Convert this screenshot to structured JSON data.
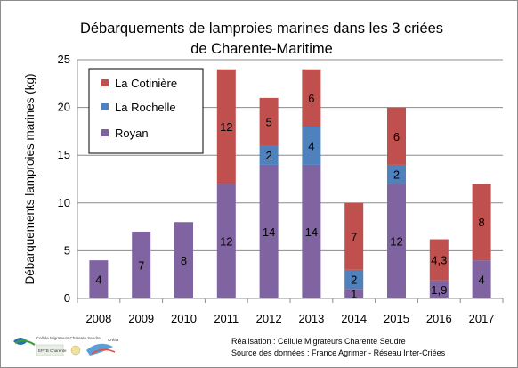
{
  "chart_data": {
    "type": "bar",
    "stacked": true,
    "title_line1": "Débarquements de lamproies marines dans les 3 criées",
    "title_line2": "de Charente-Maritime",
    "ylabel": "Débarquements lamproies marines  (kg)",
    "xlabel": "",
    "ylim": [
      0,
      25
    ],
    "yticks": [
      "0",
      "5",
      "10",
      "15",
      "20",
      "25"
    ],
    "grid": true,
    "legend_position": "top-left",
    "categories": [
      "2008",
      "2009",
      "2010",
      "2011",
      "2012",
      "2013",
      "2014",
      "2015",
      "2016",
      "2017"
    ],
    "series": [
      {
        "name": "Royan",
        "color": "#8064a2",
        "values": [
          4,
          7,
          8,
          12,
          14,
          14,
          1,
          12,
          1.9,
          4
        ],
        "labels": [
          "4",
          "7",
          "8",
          "12",
          "14",
          "14",
          "1",
          "12",
          "1,9",
          "4"
        ]
      },
      {
        "name": "La Rochelle",
        "color": "#4f81bd",
        "values": [
          0,
          0,
          0,
          0,
          2,
          4,
          2,
          2,
          0,
          0
        ],
        "labels": [
          "",
          "",
          "",
          "",
          "2",
          "4",
          "2",
          "2",
          "",
          ""
        ]
      },
      {
        "name": "La Cotinière",
        "color": "#c0504d",
        "values": [
          0,
          0,
          0,
          12,
          5,
          6,
          7,
          6,
          4.3,
          8
        ],
        "labels": [
          "",
          "",
          "",
          "12",
          "5",
          "6",
          "7",
          "6",
          "4,3",
          "8"
        ]
      }
    ],
    "legend_order": [
      "La Cotinière",
      "La Rochelle",
      "Royan"
    ]
  },
  "footer": {
    "line1": "Réalisation : Cellule Migrateurs Charente Seudre",
    "line2": "Source des données : France Agrimer - Réseau Inter-Criées"
  },
  "logos": {
    "cmcs_text": "Cellule Migrateurs Charente Seudre",
    "partner_text": "EPTB Charente",
    "creaa_text": "Créaa"
  }
}
